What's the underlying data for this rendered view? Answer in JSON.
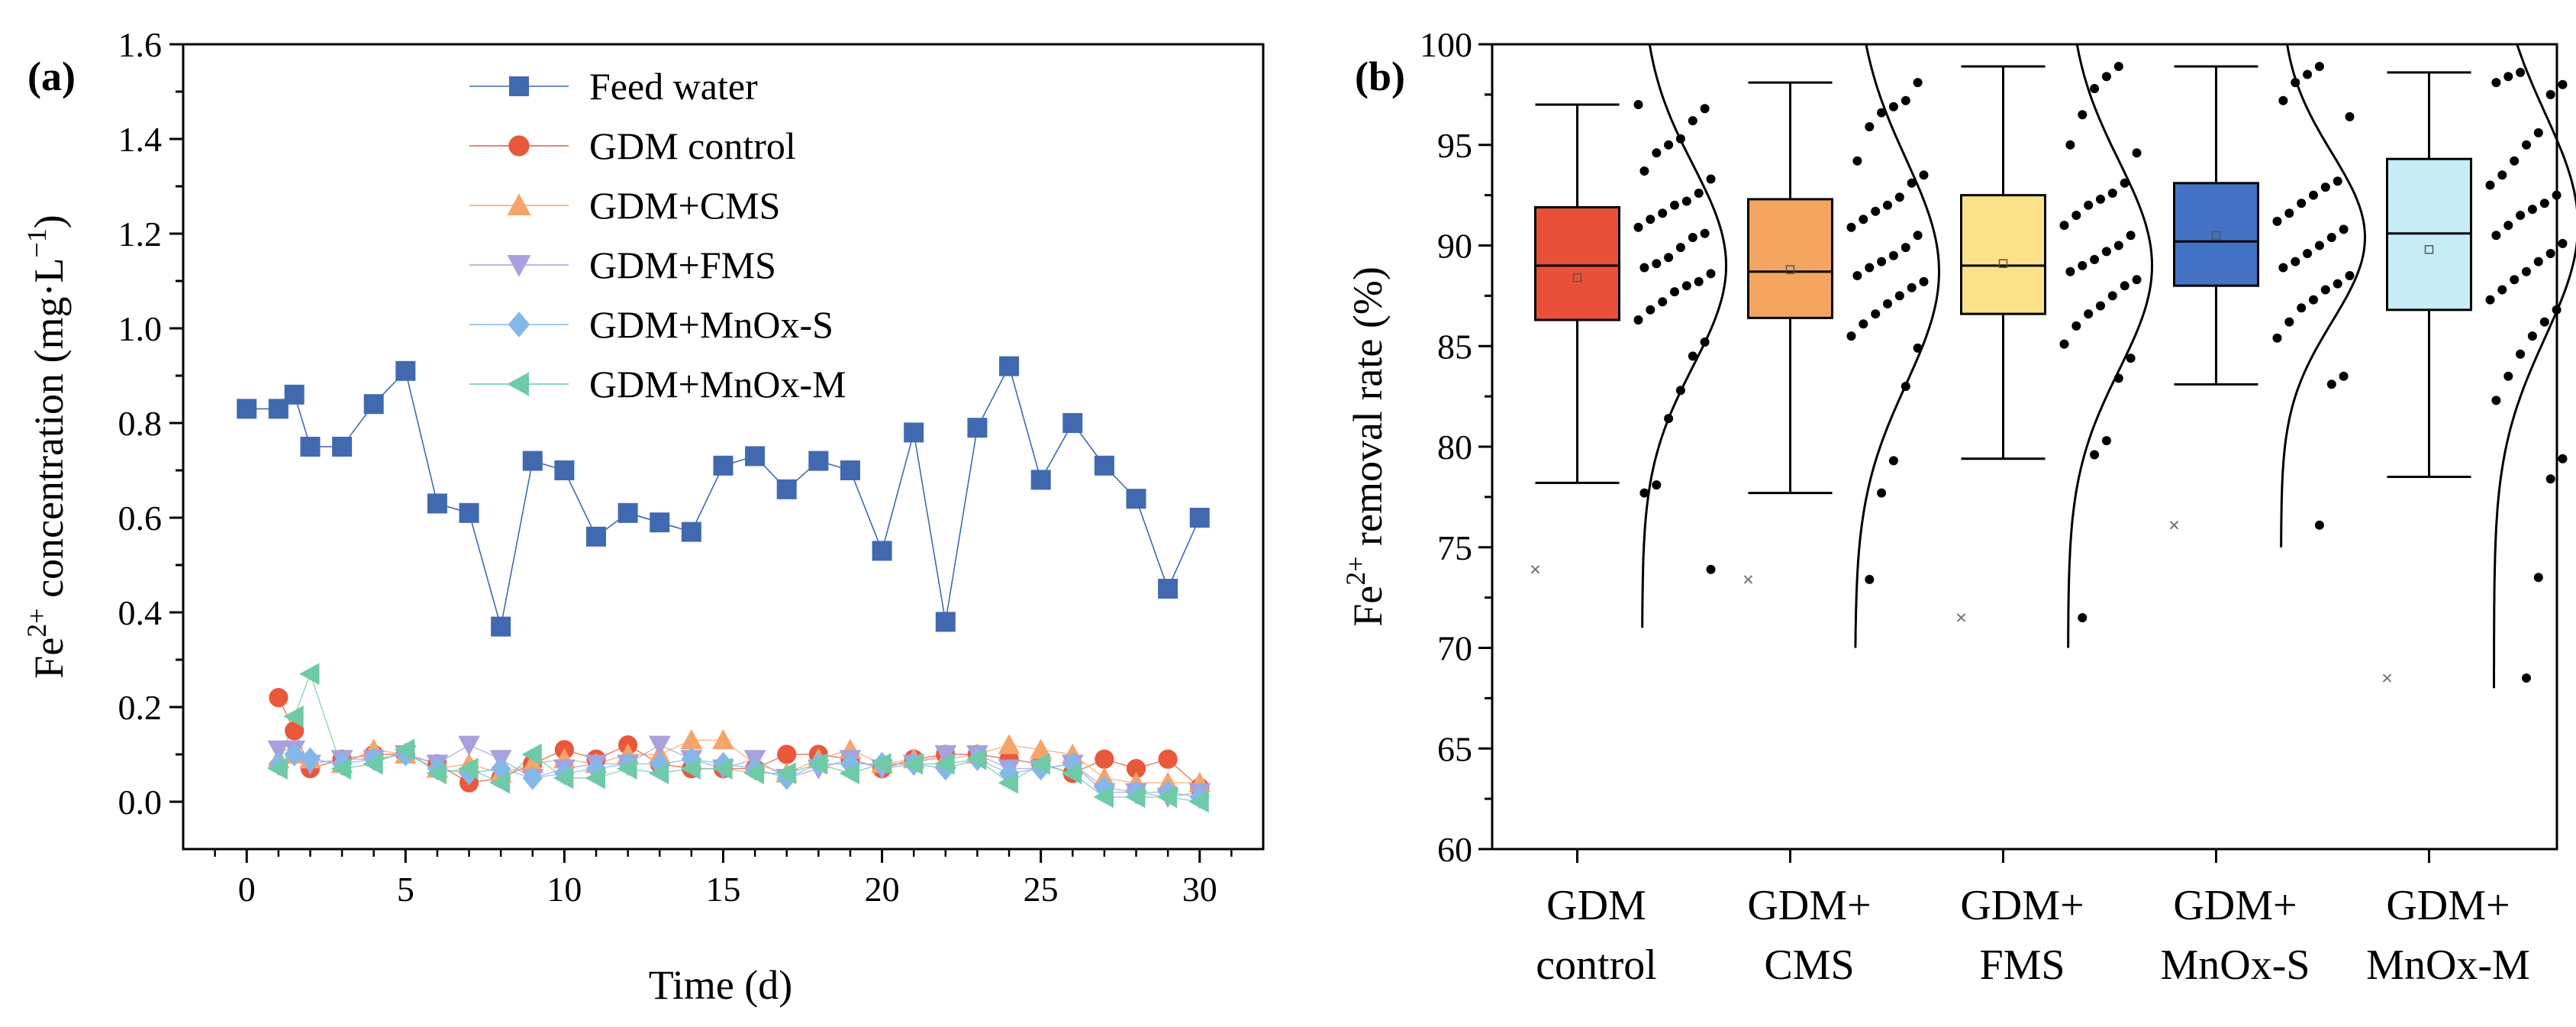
{
  "chart_data": [
    {
      "panel": "(a)",
      "type": "line",
      "xlabel": "Time (d)",
      "ylabel_main": "Fe",
      "ylabel_sup": "2+",
      "ylabel_rest": " concentration (mg·L",
      "ylabel_exp": "−1",
      "ylabel_end": ")",
      "xlim": [
        -2,
        32
      ],
      "ylim": [
        -0.1,
        1.6
      ],
      "xticks": [
        0,
        5,
        10,
        15,
        20,
        25,
        30
      ],
      "yticks": [
        0.0,
        0.2,
        0.4,
        0.6,
        0.8,
        1.0,
        1.2,
        1.4,
        1.6
      ],
      "ytick_labels": [
        "0.0",
        "0.2",
        "0.4",
        "0.6",
        "0.8",
        "1.0",
        "1.2",
        "1.4",
        "1.6"
      ],
      "legend_position": "top-center",
      "series": [
        {
          "name": "Feed water",
          "marker": "square",
          "color": "#4169b0",
          "x": [
            0,
            1,
            1.5,
            2,
            3,
            4,
            5,
            6,
            7,
            8,
            9,
            10,
            11,
            12,
            13,
            14,
            15,
            16,
            17,
            18,
            19,
            20,
            21,
            22,
            23,
            24,
            25,
            26,
            27,
            28,
            29,
            30
          ],
          "values": [
            0.83,
            0.83,
            0.86,
            0.75,
            0.75,
            0.84,
            0.91,
            0.63,
            0.61,
            0.37,
            0.72,
            0.7,
            0.56,
            0.61,
            0.59,
            0.57,
            0.71,
            0.73,
            0.66,
            0.72,
            0.7,
            0.53,
            0.78,
            0.38,
            0.79,
            0.92,
            0.68,
            0.8,
            0.71,
            0.64,
            0.45,
            0.6
          ]
        },
        {
          "name": "GDM control",
          "marker": "circle",
          "color": "#e9583a",
          "x": [
            1,
            1.5,
            2,
            3,
            4,
            5,
            6,
            7,
            8,
            9,
            10,
            11,
            12,
            13,
            14,
            15,
            16,
            17,
            18,
            19,
            20,
            21,
            22,
            23,
            24,
            25,
            26,
            27,
            28,
            29,
            30
          ],
          "values": [
            0.22,
            0.15,
            0.07,
            0.09,
            0.1,
            0.1,
            0.08,
            0.04,
            0.05,
            0.08,
            0.11,
            0.09,
            0.12,
            0.08,
            0.07,
            0.07,
            0.07,
            0.1,
            0.1,
            0.09,
            0.07,
            0.09,
            0.1,
            0.1,
            0.09,
            0.08,
            0.06,
            0.09,
            0.07,
            0.09,
            0.03
          ]
        },
        {
          "name": "GDM+CMS",
          "marker": "triangle-up",
          "color": "#f5a46a",
          "x": [
            1,
            1.5,
            2,
            3,
            4,
            5,
            6,
            7,
            8,
            9,
            10,
            11,
            12,
            13,
            14,
            15,
            16,
            17,
            18,
            19,
            20,
            21,
            22,
            23,
            24,
            25,
            26,
            27,
            28,
            29,
            30
          ],
          "values": [
            0.09,
            0.1,
            0.09,
            0.08,
            0.11,
            0.1,
            0.07,
            0.08,
            0.06,
            0.08,
            0.09,
            0.08,
            0.1,
            0.1,
            0.13,
            0.13,
            0.08,
            0.06,
            0.09,
            0.11,
            0.08,
            0.09,
            0.09,
            0.1,
            0.12,
            0.11,
            0.1,
            0.05,
            0.04,
            0.04,
            0.04
          ]
        },
        {
          "name": "GDM+FMS",
          "marker": "triangle-down",
          "color": "#a9a0dc",
          "x": [
            1,
            1.5,
            2,
            3,
            4,
            5,
            6,
            7,
            8,
            9,
            10,
            11,
            12,
            13,
            14,
            15,
            16,
            17,
            18,
            19,
            20,
            21,
            22,
            23,
            24,
            25,
            26,
            27,
            28,
            29,
            30
          ],
          "values": [
            0.11,
            0.11,
            0.08,
            0.09,
            0.09,
            0.1,
            0.08,
            0.12,
            0.09,
            0.05,
            0.07,
            0.08,
            0.08,
            0.12,
            0.09,
            0.07,
            0.09,
            0.05,
            0.07,
            0.09,
            0.07,
            0.08,
            0.1,
            0.1,
            0.07,
            0.07,
            0.08,
            0.02,
            0.02,
            0.01,
            0.02
          ]
        },
        {
          "name": "GDM+MnOx-S",
          "marker": "diamond",
          "color": "#85b8e8",
          "x": [
            1,
            1.5,
            2,
            3,
            4,
            5,
            6,
            7,
            8,
            9,
            10,
            11,
            12,
            13,
            14,
            15,
            16,
            17,
            18,
            19,
            20,
            21,
            22,
            23,
            24,
            25,
            26,
            27,
            28,
            29,
            30
          ],
          "values": [
            0.08,
            0.1,
            0.09,
            0.08,
            0.09,
            0.1,
            0.07,
            0.06,
            0.07,
            0.05,
            0.06,
            0.07,
            0.08,
            0.08,
            0.09,
            0.08,
            0.07,
            0.05,
            0.08,
            0.08,
            0.08,
            0.08,
            0.07,
            0.09,
            0.06,
            0.07,
            0.08,
            0.03,
            0.02,
            0.02,
            0.01
          ]
        },
        {
          "name": "GDM+MnOx-M",
          "marker": "triangle-left",
          "color": "#6fcaa8",
          "x": [
            1,
            1.5,
            2,
            3,
            4,
            5,
            6,
            7,
            8,
            9,
            10,
            11,
            12,
            13,
            14,
            15,
            16,
            17,
            18,
            19,
            20,
            21,
            22,
            23,
            24,
            25,
            26,
            27,
            28,
            29,
            30
          ],
          "values": [
            0.07,
            0.18,
            0.27,
            0.07,
            0.08,
            0.11,
            0.06,
            0.07,
            0.04,
            0.1,
            0.05,
            0.05,
            0.07,
            0.06,
            0.07,
            0.07,
            0.06,
            0.06,
            0.08,
            0.06,
            0.08,
            0.08,
            0.08,
            0.09,
            0.04,
            0.08,
            0.06,
            0.01,
            0.01,
            0.01,
            0.0
          ]
        }
      ]
    },
    {
      "panel": "(b)",
      "type": "box",
      "ylabel_main": "Fe",
      "ylabel_sup": "2+",
      "ylabel_rest": " removal rate (%)",
      "ylim": [
        60,
        100
      ],
      "yticks": [
        60,
        65,
        70,
        75,
        80,
        85,
        90,
        95,
        100
      ],
      "categories": [
        [
          "GDM",
          "control"
        ],
        [
          "GDM+",
          "CMS"
        ],
        [
          "GDM+",
          "FMS"
        ],
        [
          "GDM+",
          "MnOx-S"
        ],
        [
          "GDM+",
          "MnOx-M"
        ]
      ],
      "boxes": [
        {
          "color": "#e8503a",
          "whisker_low": 78.2,
          "q1": 86.3,
          "median": 89.0,
          "q3": 91.9,
          "whisker_high": 97.0,
          "mean": 88.4,
          "outlier": 73.9,
          "curve_min": 71.0,
          "curve_peak": 89.0,
          "curve_sd": 5.0,
          "points": [
            97.0,
            96.8,
            96.2,
            95.3,
            95.0,
            94.6,
            93.7,
            93.3,
            92.6,
            92.2,
            92.0,
            91.6,
            91.3,
            90.9,
            90.6,
            90.4,
            89.9,
            89.4,
            89.1,
            88.9,
            88.6,
            88.2,
            88.0,
            87.7,
            87.2,
            86.8,
            86.3,
            85.2,
            84.5,
            82.8,
            81.4,
            78.1,
            77.7,
            73.9
          ]
        },
        {
          "color": "#f3a560",
          "whisker_low": 77.7,
          "q1": 86.4,
          "median": 88.7,
          "q3": 92.3,
          "whisker_high": 98.1,
          "mean": 88.8,
          "outlier": 73.4,
          "curve_min": 70.0,
          "curve_peak": 88.7,
          "curve_sd": 5.6,
          "points": [
            98.1,
            97.2,
            96.9,
            96.6,
            95.9,
            94.2,
            93.5,
            93.1,
            92.4,
            92.0,
            91.7,
            91.3,
            90.9,
            90.5,
            89.9,
            89.5,
            89.2,
            88.9,
            88.5,
            88.2,
            87.9,
            87.5,
            87.1,
            86.6,
            86.1,
            85.5,
            84.9,
            83.0,
            79.3,
            77.7,
            73.4
          ]
        },
        {
          "color": "#fbe28a",
          "whisker_low": 79.4,
          "q1": 86.6,
          "median": 89.0,
          "q3": 92.5,
          "whisker_high": 98.9,
          "mean": 89.1,
          "outlier": 71.5,
          "curve_min": 70.0,
          "curve_peak": 89.0,
          "curve_sd": 5.2,
          "points": [
            98.9,
            98.4,
            97.8,
            96.5,
            95.0,
            94.6,
            93.1,
            92.6,
            92.3,
            92.0,
            91.5,
            91.0,
            90.5,
            90.0,
            89.7,
            89.3,
            89.0,
            88.7,
            88.3,
            88.0,
            87.5,
            87.0,
            86.6,
            86.0,
            85.1,
            84.4,
            83.4,
            80.3,
            79.6,
            71.5
          ]
        },
        {
          "color": "#4472c4",
          "whisker_low": 83.1,
          "q1": 88.0,
          "median": 90.2,
          "q3": 93.1,
          "whisker_high": 98.9,
          "mean": 90.5,
          "outlier": 76.1,
          "curve_min": 75.0,
          "curve_peak": 90.4,
          "curve_sd": 4.2,
          "points": [
            98.9,
            98.5,
            98.1,
            97.2,
            96.4,
            93.2,
            92.9,
            92.5,
            92.1,
            91.6,
            91.2,
            90.8,
            90.4,
            90.0,
            89.6,
            89.2,
            88.9,
            88.5,
            88.1,
            87.8,
            87.3,
            86.9,
            86.2,
            85.4,
            83.5,
            83.1,
            76.1
          ]
        },
        {
          "color": "#c6ecf6",
          "whisker_low": 78.5,
          "q1": 86.8,
          "median": 90.6,
          "q3": 94.3,
          "whisker_high": 98.6,
          "mean": 89.8,
          "outlier": 68.5,
          "curve_min": 68.0,
          "curve_peak": 91.0,
          "curve_sd": 5.6,
          "points": [
            98.6,
            98.4,
            98.1,
            98.0,
            97.5,
            95.6,
            95.0,
            94.2,
            93.5,
            93.0,
            92.5,
            92.1,
            91.8,
            91.5,
            91.0,
            90.5,
            90.1,
            89.6,
            89.2,
            88.7,
            88.3,
            87.8,
            87.3,
            86.8,
            86.2,
            85.5,
            84.6,
            83.5,
            82.3,
            79.4,
            78.4,
            73.5,
            68.5
          ]
        }
      ]
    }
  ]
}
